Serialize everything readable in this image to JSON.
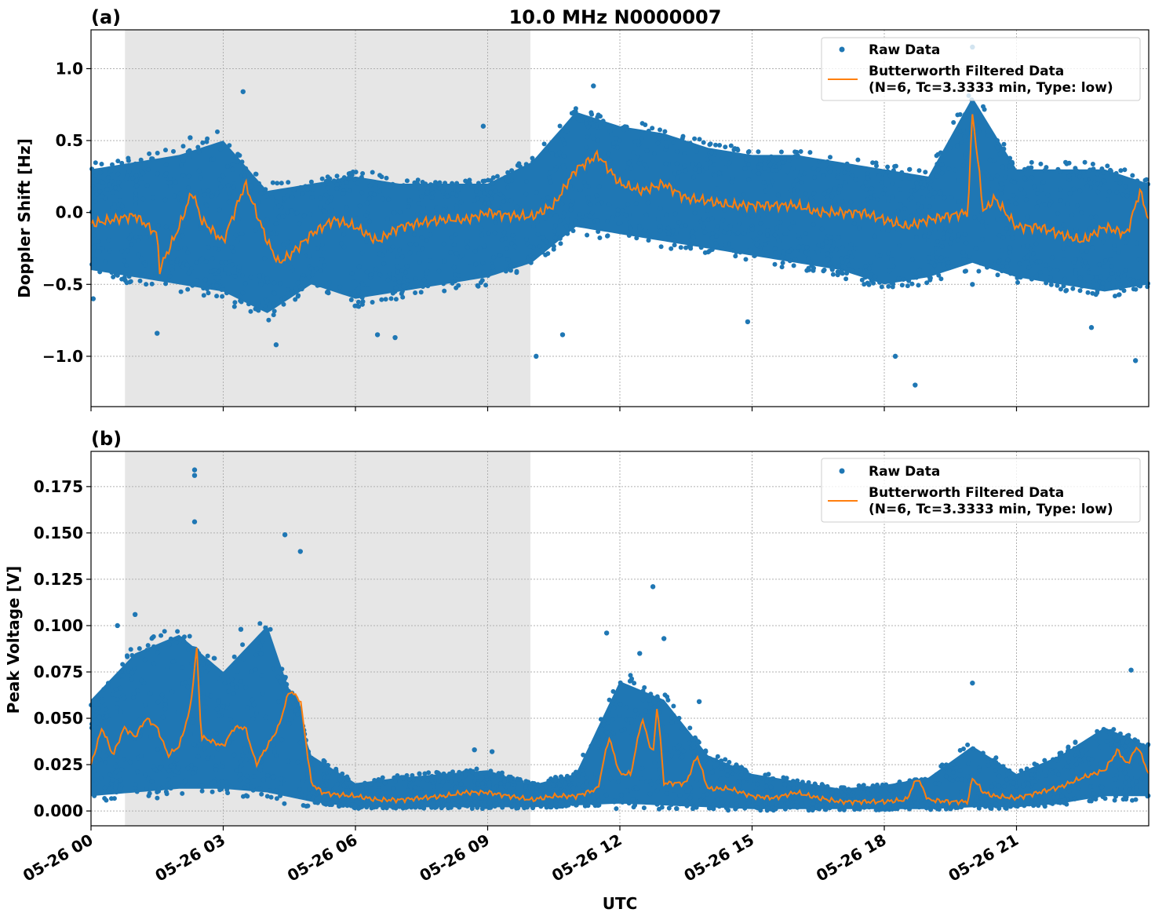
{
  "chart_data": [
    {
      "type": "scatter+line",
      "panel_label": "(a)",
      "title": "10.0 MHz N0000007",
      "xlabel": "",
      "ylabel": "Doppler Shift [Hz]",
      "x_unit": "hours UTC on 05-26",
      "xlim": [
        0,
        24
      ],
      "ylim": [
        -1.35,
        1.27
      ],
      "yticks": [
        1.0,
        0.5,
        0.0,
        -0.5,
        -1.0
      ],
      "ytick_labels": [
        "1.0",
        "0.5",
        "0.0",
        "−0.5",
        "−1.0"
      ],
      "grid": true,
      "legend_position": "top-right",
      "shaded_interval_hours": [
        0.77,
        9.97
      ],
      "legend": {
        "raw": "Raw Data",
        "filtered_line1": "Butterworth Filtered Data",
        "filtered_line2": "(N=6, Tc=3.3333 min, Type: low)"
      },
      "filtered": {
        "x": [
          0,
          0.5,
          1,
          1.5,
          1.55,
          2,
          2.3,
          2.5,
          3,
          3.5,
          3.75,
          4,
          4.25,
          4.5,
          5,
          5.5,
          6,
          6.5,
          7,
          7.5,
          8,
          8.5,
          9,
          9.5,
          10,
          10.5,
          11,
          11.5,
          12,
          12.5,
          13,
          13.5,
          14,
          14.5,
          15,
          15.5,
          16,
          16.5,
          17,
          17.5,
          18,
          18.5,
          19,
          19.5,
          19.9,
          20,
          20.25,
          20.5,
          21,
          21.5,
          22,
          22.5,
          23,
          23.5,
          23.8,
          24
        ],
        "y": [
          -0.08,
          -0.05,
          -0.02,
          -0.15,
          -0.4,
          -0.1,
          0.15,
          -0.05,
          -0.2,
          0.2,
          0.0,
          -0.2,
          -0.35,
          -0.3,
          -0.15,
          -0.05,
          -0.1,
          -0.2,
          -0.1,
          -0.07,
          -0.05,
          -0.05,
          0.0,
          -0.02,
          -0.03,
          0.05,
          0.3,
          0.4,
          0.2,
          0.15,
          0.2,
          0.1,
          0.08,
          0.05,
          0.05,
          0.05,
          0.05,
          0.0,
          0.0,
          0.0,
          -0.05,
          -0.1,
          -0.05,
          -0.02,
          0.0,
          0.7,
          0.0,
          0.1,
          -0.1,
          -0.1,
          -0.15,
          -0.2,
          -0.1,
          -0.15,
          0.15,
          -0.05
        ]
      },
      "raw_band": {
        "x": [
          0,
          1,
          2,
          3,
          4,
          5,
          6,
          7,
          8,
          9,
          10,
          11,
          12,
          13,
          14,
          15,
          16,
          17,
          18,
          19,
          20,
          21,
          22,
          23,
          24
        ],
        "low": [
          -0.4,
          -0.45,
          -0.5,
          -0.55,
          -0.7,
          -0.5,
          -0.6,
          -0.55,
          -0.5,
          -0.45,
          -0.35,
          -0.1,
          -0.15,
          -0.2,
          -0.25,
          -0.3,
          -0.35,
          -0.4,
          -0.5,
          -0.45,
          -0.35,
          -0.45,
          -0.5,
          -0.55,
          -0.5
        ],
        "high": [
          0.3,
          0.35,
          0.4,
          0.5,
          0.15,
          0.2,
          0.25,
          0.2,
          0.2,
          0.2,
          0.35,
          0.7,
          0.6,
          0.55,
          0.45,
          0.4,
          0.4,
          0.35,
          0.3,
          0.25,
          0.8,
          0.3,
          0.3,
          0.3,
          0.2
        ]
      },
      "raw_outliers": [
        [
          0.05,
          -0.6
        ],
        [
          1.5,
          -0.84
        ],
        [
          2.25,
          0.52
        ],
        [
          3.45,
          0.84
        ],
        [
          4.2,
          -0.92
        ],
        [
          6.5,
          -0.85
        ],
        [
          6.9,
          -0.87
        ],
        [
          8.9,
          0.6
        ],
        [
          10.1,
          -1.0
        ],
        [
          10.7,
          -0.85
        ],
        [
          11.4,
          0.88
        ],
        [
          14.9,
          -0.76
        ],
        [
          18.7,
          -1.2
        ],
        [
          18.25,
          -1.0
        ],
        [
          20.0,
          1.15
        ],
        [
          20.0,
          -0.5
        ],
        [
          22.7,
          -0.8
        ],
        [
          23.7,
          -1.03
        ]
      ]
    },
    {
      "type": "scatter+line",
      "panel_label": "(b)",
      "title": "",
      "xlabel": "UTC",
      "ylabel": "Peak Voltage [V]",
      "x_unit": "hours UTC on 05-26",
      "xlim": [
        0,
        24
      ],
      "ylim": [
        -0.008,
        0.194
      ],
      "yticks": [
        0.175,
        0.15,
        0.125,
        0.1,
        0.075,
        0.05,
        0.025,
        0.0
      ],
      "ytick_labels": [
        "0.175",
        "0.150",
        "0.125",
        "0.100",
        "0.075",
        "0.050",
        "0.025",
        "0.000"
      ],
      "xtick_labels": [
        "05-26 00",
        "05-26 03",
        "05-26 06",
        "05-26 09",
        "05-26 12",
        "05-26 15",
        "05-26 18",
        "05-26 21"
      ],
      "xticks_hours": [
        0,
        3,
        6,
        9,
        12,
        15,
        18,
        21
      ],
      "grid": true,
      "legend_position": "top-right",
      "shaded_interval_hours": [
        0.77,
        9.97
      ],
      "legend": {
        "raw": "Raw Data",
        "filtered_line1": "Butterworth Filtered Data",
        "filtered_line2": "(N=6, Tc=3.3333 min, Type: low)"
      },
      "filtered": {
        "x": [
          0,
          0.25,
          0.5,
          0.75,
          1,
          1.25,
          1.5,
          1.75,
          2,
          2.25,
          2.4,
          2.5,
          3,
          3.25,
          3.5,
          3.75,
          4,
          4.25,
          4.5,
          4.75,
          5,
          5.25,
          5.5,
          6,
          6.5,
          7,
          7.5,
          8,
          8.5,
          9,
          9.5,
          10,
          10.5,
          11,
          11.5,
          11.75,
          12,
          12.25,
          12.5,
          12.75,
          12.85,
          13,
          13.5,
          13.75,
          14,
          14.5,
          15,
          15.5,
          16,
          16.5,
          17,
          17.5,
          18,
          18.5,
          18.75,
          19,
          19.5,
          19.9,
          20,
          20.25,
          20.5,
          21,
          21.5,
          22,
          22.5,
          23,
          23.3,
          23.5,
          23.75,
          24
        ],
        "y": [
          0.025,
          0.045,
          0.03,
          0.045,
          0.04,
          0.05,
          0.045,
          0.03,
          0.035,
          0.055,
          0.088,
          0.04,
          0.035,
          0.045,
          0.045,
          0.025,
          0.035,
          0.045,
          0.065,
          0.06,
          0.015,
          0.01,
          0.009,
          0.008,
          0.006,
          0.006,
          0.007,
          0.008,
          0.01,
          0.01,
          0.008,
          0.006,
          0.008,
          0.008,
          0.012,
          0.04,
          0.02,
          0.02,
          0.05,
          0.03,
          0.058,
          0.015,
          0.015,
          0.03,
          0.012,
          0.012,
          0.008,
          0.007,
          0.01,
          0.007,
          0.005,
          0.005,
          0.005,
          0.006,
          0.018,
          0.006,
          0.005,
          0.005,
          0.018,
          0.01,
          0.008,
          0.007,
          0.01,
          0.013,
          0.018,
          0.022,
          0.033,
          0.025,
          0.035,
          0.02
        ]
      },
      "raw_band": {
        "x": [
          0,
          1,
          2,
          3,
          4,
          5,
          6,
          7,
          8,
          9,
          10,
          11,
          12,
          13,
          14,
          15,
          16,
          17,
          18,
          19,
          20,
          21,
          22,
          23,
          24
        ],
        "low": [
          0.008,
          0.01,
          0.012,
          0.012,
          0.01,
          0.005,
          0.002,
          0.002,
          0.002,
          0.002,
          0.002,
          0.003,
          0.004,
          0.003,
          0.002,
          0.001,
          0.001,
          0.001,
          0.001,
          0.001,
          0.002,
          0.002,
          0.004,
          0.008,
          0.008
        ],
        "high": [
          0.06,
          0.085,
          0.095,
          0.075,
          0.1,
          0.03,
          0.015,
          0.018,
          0.02,
          0.022,
          0.014,
          0.02,
          0.07,
          0.06,
          0.03,
          0.02,
          0.016,
          0.012,
          0.014,
          0.018,
          0.035,
          0.02,
          0.03,
          0.045,
          0.035
        ]
      },
      "raw_outliers": [
        [
          0.6,
          0.1
        ],
        [
          1.0,
          0.106
        ],
        [
          2.35,
          0.184
        ],
        [
          2.35,
          0.181
        ],
        [
          2.35,
          0.156
        ],
        [
          3.4,
          0.098
        ],
        [
          4.4,
          0.149
        ],
        [
          4.75,
          0.14
        ],
        [
          8.7,
          0.033
        ],
        [
          9.1,
          0.032
        ],
        [
          11.7,
          0.096
        ],
        [
          12.45,
          0.085
        ],
        [
          12.75,
          0.121
        ],
        [
          13.0,
          0.093
        ],
        [
          13.8,
          0.059
        ],
        [
          20.0,
          0.069
        ],
        [
          23.6,
          0.076
        ]
      ]
    }
  ],
  "colors": {
    "raw": "#1f77b4",
    "filtered": "#ff7f0e",
    "shade": "#e6e6e6",
    "grid": "#b0b0b0"
  }
}
